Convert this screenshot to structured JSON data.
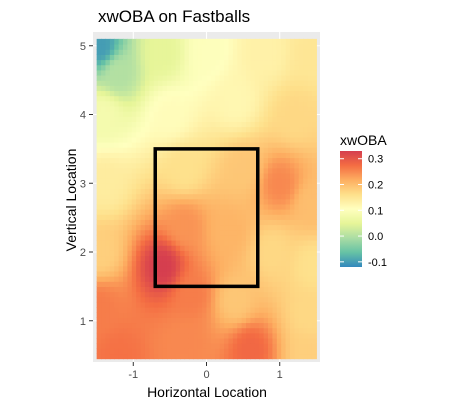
{
  "chart_data": {
    "type": "heatmap",
    "title": "xwOBA on Fastballs",
    "xlabel": "Horizontal Location",
    "ylabel": "Vertical Location",
    "xlim": [
      -1.55,
      1.55
    ],
    "ylim": [
      0.4,
      5.2
    ],
    "x_ticks": [
      -1,
      0,
      1
    ],
    "y_ticks": [
      1,
      2,
      3,
      4,
      5
    ],
    "x_tick_labels": [
      "-1",
      "0",
      "1"
    ],
    "y_tick_labels": [
      "1",
      "2",
      "3",
      "4",
      "5"
    ],
    "grid": true,
    "panel_background": "#ebebeb",
    "tile_x_range": [
      -1.5,
      1.5
    ],
    "tile_y_range": [
      0.45,
      5.1
    ],
    "strike_zone": {
      "x": [
        -0.7,
        0.7
      ],
      "y": [
        1.5,
        3.5
      ]
    },
    "legend": {
      "title": "xwOBA",
      "position": "right",
      "breaks": [
        -0.1,
        0.0,
        0.1,
        0.2,
        0.3
      ],
      "labels": [
        "-0.1",
        "0.0",
        "0.1",
        "0.2",
        "0.3"
      ],
      "range": [
        -0.12,
        0.33
      ]
    },
    "color_scale": [
      "#3288bd",
      "#66c2a5",
      "#abdda4",
      "#e6f598",
      "#ffffbf",
      "#fee08b",
      "#fdae61",
      "#f46d43",
      "#d53e4f"
    ],
    "surface_anchors": [
      {
        "x": -1.45,
        "y": 5.0,
        "value": -0.1
      },
      {
        "x": -1.2,
        "y": 4.6,
        "value": 0.0
      },
      {
        "x": -0.6,
        "y": 4.9,
        "value": 0.05
      },
      {
        "x": -1.4,
        "y": 4.0,
        "value": 0.08
      },
      {
        "x": 0.0,
        "y": 4.9,
        "value": 0.1
      },
      {
        "x": 0.8,
        "y": 4.9,
        "value": 0.13
      },
      {
        "x": 1.45,
        "y": 4.9,
        "value": 0.15
      },
      {
        "x": -0.5,
        "y": 4.0,
        "value": 0.11
      },
      {
        "x": 0.4,
        "y": 4.2,
        "value": 0.12
      },
      {
        "x": 1.2,
        "y": 4.0,
        "value": 0.17
      },
      {
        "x": -1.4,
        "y": 3.0,
        "value": 0.14
      },
      {
        "x": -0.3,
        "y": 3.2,
        "value": 0.16
      },
      {
        "x": 0.5,
        "y": 3.2,
        "value": 0.19
      },
      {
        "x": 1.0,
        "y": 3.0,
        "value": 0.25
      },
      {
        "x": 1.45,
        "y": 2.7,
        "value": 0.2
      },
      {
        "x": -1.45,
        "y": 2.0,
        "value": 0.18
      },
      {
        "x": -0.3,
        "y": 2.4,
        "value": 0.24
      },
      {
        "x": 0.3,
        "y": 2.3,
        "value": 0.21
      },
      {
        "x": 0.9,
        "y": 2.0,
        "value": 0.17
      },
      {
        "x": 1.45,
        "y": 1.8,
        "value": 0.16
      },
      {
        "x": -1.45,
        "y": 1.2,
        "value": 0.26
      },
      {
        "x": -0.6,
        "y": 1.8,
        "value": 0.33
      },
      {
        "x": -0.2,
        "y": 1.4,
        "value": 0.26
      },
      {
        "x": 0.4,
        "y": 1.3,
        "value": 0.19
      },
      {
        "x": 1.4,
        "y": 1.1,
        "value": 0.17
      },
      {
        "x": -1.2,
        "y": 0.5,
        "value": 0.27
      },
      {
        "x": -0.3,
        "y": 0.7,
        "value": 0.25
      },
      {
        "x": 0.6,
        "y": 0.6,
        "value": 0.28
      },
      {
        "x": 1.4,
        "y": 0.5,
        "value": 0.18
      }
    ]
  }
}
